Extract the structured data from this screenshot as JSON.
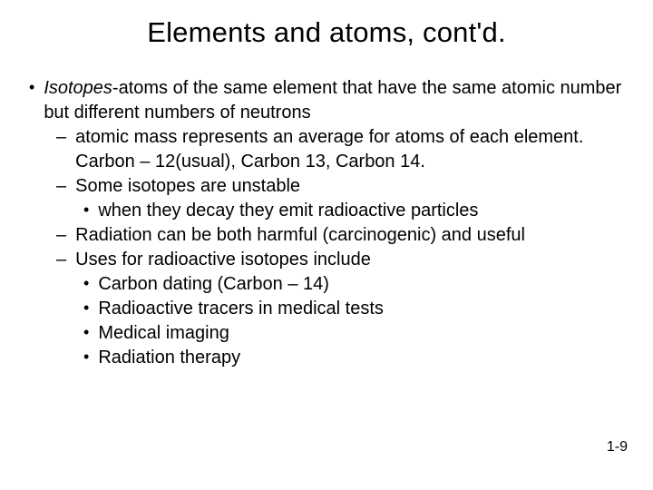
{
  "title": "Elements and atoms, cont'd.",
  "footer": "1-9",
  "colors": {
    "background": "#ffffff",
    "text": "#000000"
  },
  "typography": {
    "title_size_pt": 31,
    "body_size_pt": 20,
    "footer_size_pt": 16,
    "font_family": "Arial"
  },
  "bullets": [
    {
      "level": 0,
      "mark": "•",
      "prefix_italic": "Isotopes",
      "text": "-atoms of the same element that have the same atomic number but different numbers of neutrons"
    },
    {
      "level": 1,
      "mark": "–",
      "text": "atomic mass represents an average for atoms of each element.  Carbon – 12(usual), Carbon 13, Carbon 14."
    },
    {
      "level": 1,
      "mark": "–",
      "text": "Some isotopes are unstable"
    },
    {
      "level": 2,
      "mark": "•",
      "text": "when they decay they emit radioactive particles"
    },
    {
      "level": 1,
      "mark": "–",
      "text": "Radiation can be both harmful (carcinogenic) and useful"
    },
    {
      "level": 1,
      "mark": "–",
      "text": "Uses for radioactive isotopes include"
    },
    {
      "level": 2,
      "mark": "•",
      "text": "Carbon dating (Carbon – 14)"
    },
    {
      "level": 2,
      "mark": "•",
      "text": "Radioactive tracers in medical tests"
    },
    {
      "level": 2,
      "mark": "•",
      "text": "Medical imaging"
    },
    {
      "level": 2,
      "mark": "•",
      "text": "Radiation therapy"
    }
  ]
}
